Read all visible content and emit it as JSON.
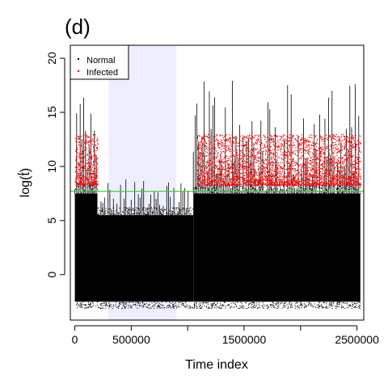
{
  "panel_label": "(d)",
  "chart_data": {
    "type": "scatter",
    "xlabel": "Time index",
    "ylabel": "log(t)",
    "ylabel_exponent": "f",
    "xlim": [
      -40000,
      2560000
    ],
    "ylim": [
      -4.2,
      21.2
    ],
    "x_ticks": [
      0,
      500000,
      1000000,
      1500000,
      2000000,
      2500000
    ],
    "x_tick_labels": [
      "0",
      "500000",
      "",
      "1500000",
      "",
      "2500000"
    ],
    "y_ticks": [
      0,
      5,
      10,
      15,
      20
    ],
    "y_tick_labels": [
      "0",
      "5",
      "10",
      "15",
      "20"
    ],
    "threshold_line": {
      "y": 7.7,
      "color": "#33cc33"
    },
    "shaded_region": {
      "x": [
        300000,
        900000
      ],
      "color": "#eeeeff"
    },
    "legend": {
      "position": "top-left",
      "entries": [
        {
          "label": "Normal",
          "color": "#000000"
        },
        {
          "label": "Infected",
          "color": "#ff0000"
        }
      ]
    },
    "series": [
      {
        "name": "Normal",
        "color": "#000000",
        "segments": [
          {
            "x": [
              0,
              200000
            ],
            "y_range": [
              -2.5,
              7.5
            ],
            "y_max_sparse": 16.5
          },
          {
            "x": [
              200000,
              1050000
            ],
            "y_range": [
              -2.5,
              5.5
            ],
            "y_max_sparse": 9
          },
          {
            "x": [
              1050000,
              2530000
            ],
            "y_range": [
              -2.5,
              7.5
            ],
            "y_max_sparse": 18
          }
        ]
      },
      {
        "name": "Infected",
        "color": "#ff0000",
        "segments": [
          {
            "x": [
              0,
              200000
            ],
            "y_range": [
              8.3,
              13
            ]
          },
          {
            "x": [
              1080000,
              2530000
            ],
            "y_range": [
              8.3,
              13
            ]
          }
        ]
      }
    ]
  }
}
